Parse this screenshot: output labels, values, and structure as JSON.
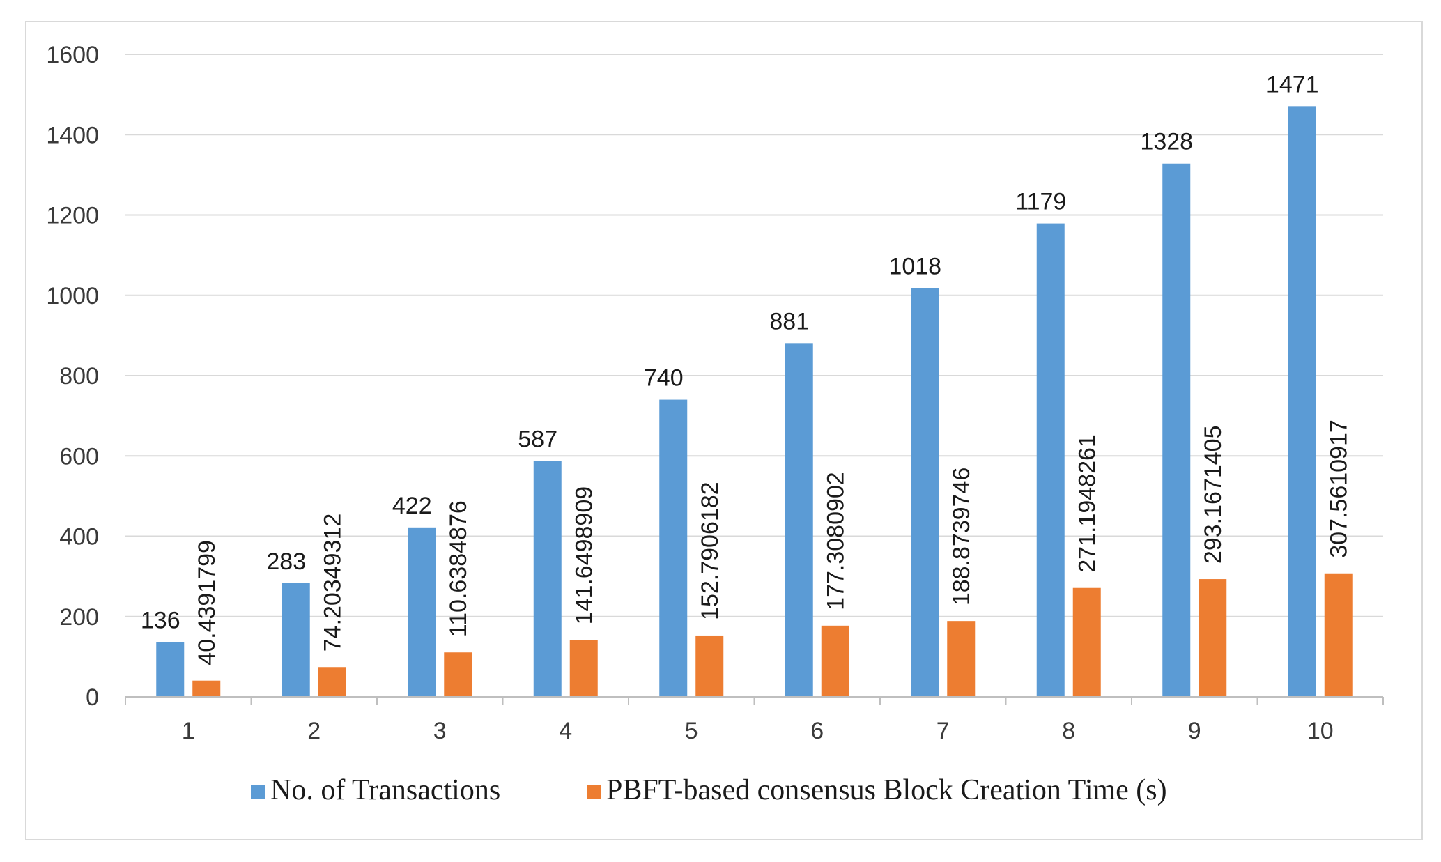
{
  "chart_data": {
    "type": "bar",
    "title": "",
    "xlabel": "",
    "ylabel": "",
    "categories": [
      "1",
      "2",
      "3",
      "4",
      "5",
      "6",
      "7",
      "8",
      "9",
      "10"
    ],
    "ylim": [
      0,
      1600
    ],
    "yticks": [
      "0",
      "200",
      "400",
      "600",
      "800",
      "1000",
      "1200",
      "1400",
      "1600"
    ],
    "grid": true,
    "legend_position": "bottom",
    "series": [
      {
        "name": "No. of Transactions",
        "color": "#5b9bd5",
        "values": [
          136,
          283,
          422,
          587,
          740,
          881,
          1018,
          1179,
          1328,
          1471
        ],
        "labels": [
          "136",
          "283",
          "422",
          "587",
          "740",
          "881",
          "1018",
          "1179",
          "1328",
          "1471"
        ]
      },
      {
        "name": "PBFT-based consensus Block Creation Time (s)",
        "color": "#ed7d31",
        "values": [
          40.4391799,
          74.20349312,
          110.6384876,
          141.6498909,
          152.7906182,
          177.3080902,
          188.8739746,
          271.1948261,
          293.1671405,
          307.5610917
        ],
        "labels": [
          "40.4391799",
          "74.20349312",
          "110.6384876",
          "141.6498909",
          "152.7906182",
          "177.3080902",
          "188.8739746",
          "271.1948261",
          "293.1671405",
          "307.5610917"
        ]
      }
    ]
  },
  "colors": {
    "grid": "#d9d9d9",
    "axis": "#bfbfbf",
    "frame": "#d9d9d9"
  }
}
